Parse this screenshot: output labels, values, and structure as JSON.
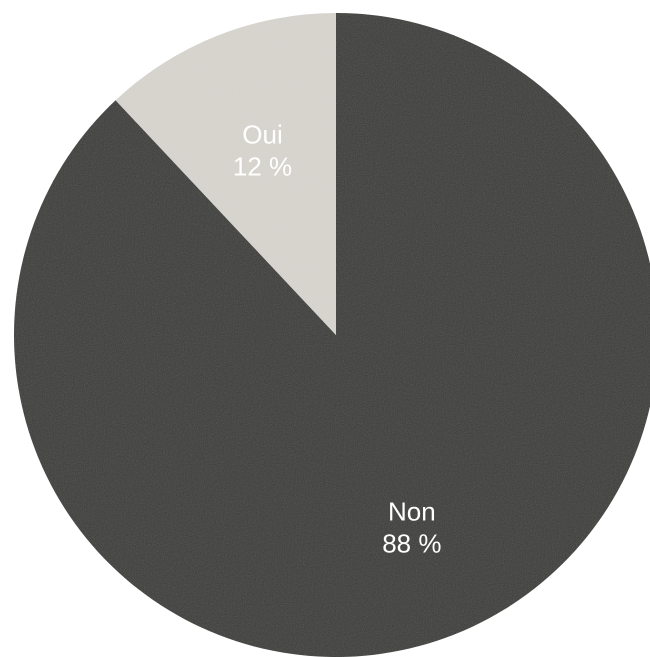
{
  "chart_data": {
    "type": "pie",
    "title": "",
    "start_angle_deg": 0,
    "direction": "clockwise",
    "slices": [
      {
        "label": "Non",
        "value": 88,
        "value_label": "88 %",
        "color": "#3e3d3a"
      },
      {
        "label": "Oui",
        "value": 12,
        "value_label": "12 %",
        "color": "#d8d5cf"
      }
    ]
  }
}
